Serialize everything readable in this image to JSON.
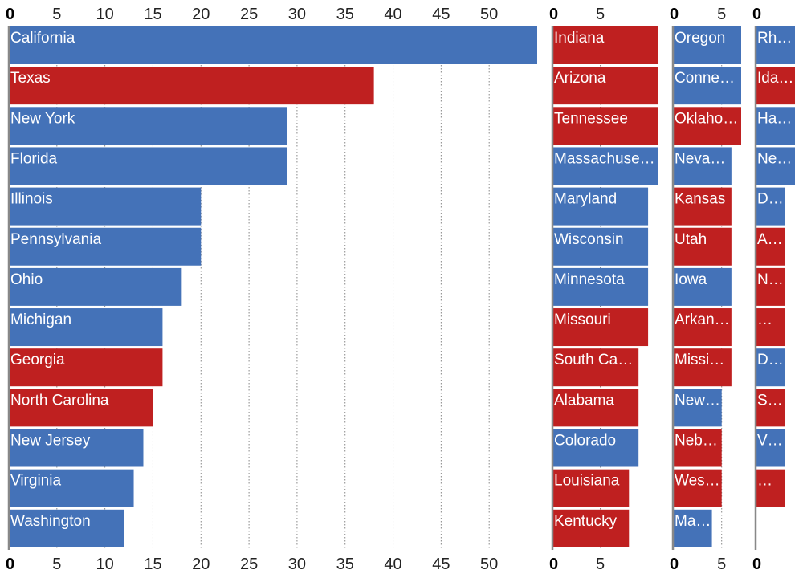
{
  "colors": {
    "democrat": "#4472b8",
    "republican": "#bf2020",
    "grid": "#888888",
    "axis": "#888888"
  },
  "chart_data": {
    "type": "bar",
    "orientation": "horizontal",
    "title": "",
    "xlabel": "",
    "ylabel": "",
    "grid": true,
    "ticks_top_and_bottom": true,
    "panels": [
      {
        "ticks": [
          0,
          5,
          10,
          15,
          20,
          25,
          30,
          35,
          40,
          45,
          50
        ],
        "xlim": [
          0,
          55
        ],
        "bars": [
          {
            "label": "California",
            "value": 55,
            "party": "democrat"
          },
          {
            "label": "Texas",
            "value": 38,
            "party": "republican"
          },
          {
            "label": "New York",
            "value": 29,
            "party": "democrat"
          },
          {
            "label": "Florida",
            "value": 29,
            "party": "democrat"
          },
          {
            "label": "Illinois",
            "value": 20,
            "party": "democrat"
          },
          {
            "label": "Pennsylvania",
            "value": 20,
            "party": "democrat"
          },
          {
            "label": "Ohio",
            "value": 18,
            "party": "democrat"
          },
          {
            "label": "Michigan",
            "value": 16,
            "party": "democrat"
          },
          {
            "label": "Georgia",
            "value": 16,
            "party": "republican"
          },
          {
            "label": "North Carolina",
            "value": 15,
            "party": "republican"
          },
          {
            "label": "New Jersey",
            "value": 14,
            "party": "democrat"
          },
          {
            "label": "Virginia",
            "value": 13,
            "party": "democrat"
          },
          {
            "label": "Washington",
            "value": 12,
            "party": "democrat"
          }
        ]
      },
      {
        "ticks": [
          0,
          5
        ],
        "xlim": [
          0,
          11
        ],
        "bars": [
          {
            "label": "Indiana",
            "value": 11,
            "party": "republican"
          },
          {
            "label": "Arizona",
            "value": 11,
            "party": "republican"
          },
          {
            "label": "Tennessee",
            "value": 11,
            "party": "republican"
          },
          {
            "label": "Massachuse…",
            "value": 11,
            "party": "democrat"
          },
          {
            "label": "Maryland",
            "value": 10,
            "party": "democrat"
          },
          {
            "label": "Wisconsin",
            "value": 10,
            "party": "democrat"
          },
          {
            "label": "Minnesota",
            "value": 10,
            "party": "democrat"
          },
          {
            "label": "Missouri",
            "value": 10,
            "party": "republican"
          },
          {
            "label": "South Car…",
            "value": 9,
            "party": "republican"
          },
          {
            "label": "Alabama",
            "value": 9,
            "party": "republican"
          },
          {
            "label": "Colorado",
            "value": 9,
            "party": "democrat"
          },
          {
            "label": "Louisiana",
            "value": 8,
            "party": "republican"
          },
          {
            "label": "Kentucky",
            "value": 8,
            "party": "republican"
          }
        ]
      },
      {
        "ticks": [
          0,
          5
        ],
        "xlim": [
          0,
          7
        ],
        "bars": [
          {
            "label": "Oregon",
            "value": 7,
            "party": "democrat"
          },
          {
            "label": "Connec…",
            "value": 7,
            "party": "democrat"
          },
          {
            "label": "Oklaho…",
            "value": 7,
            "party": "republican"
          },
          {
            "label": "Nevad…",
            "value": 6,
            "party": "democrat"
          },
          {
            "label": "Kansas",
            "value": 6,
            "party": "republican"
          },
          {
            "label": "Utah",
            "value": 6,
            "party": "republican"
          },
          {
            "label": "Iowa",
            "value": 6,
            "party": "democrat"
          },
          {
            "label": "Arkan…",
            "value": 6,
            "party": "republican"
          },
          {
            "label": "Missi…",
            "value": 6,
            "party": "republican"
          },
          {
            "label": "New…",
            "value": 5,
            "party": "democrat"
          },
          {
            "label": "Nebr…",
            "value": 5,
            "party": "republican"
          },
          {
            "label": "Wes…",
            "value": 5,
            "party": "republican"
          },
          {
            "label": "Ma…",
            "value": 4,
            "party": "democrat"
          }
        ]
      },
      {
        "ticks": [
          0
        ],
        "xlim": [
          0,
          4
        ],
        "bars": [
          {
            "label": "Rho…",
            "value": 4,
            "party": "democrat"
          },
          {
            "label": "Ida…",
            "value": 4,
            "party": "republican"
          },
          {
            "label": "Ha…",
            "value": 4,
            "party": "democrat"
          },
          {
            "label": "Ne…",
            "value": 4,
            "party": "democrat"
          },
          {
            "label": "D…",
            "value": 3,
            "party": "democrat"
          },
          {
            "label": "Al…",
            "value": 3,
            "party": "republican"
          },
          {
            "label": "N…",
            "value": 3,
            "party": "republican"
          },
          {
            "label": "M…",
            "value": 3,
            "party": "republican"
          },
          {
            "label": "Di…",
            "value": 3,
            "party": "democrat"
          },
          {
            "label": "S…",
            "value": 3,
            "party": "republican"
          },
          {
            "label": "V…",
            "value": 3,
            "party": "democrat"
          },
          {
            "label": "W…",
            "value": 3,
            "party": "republican"
          }
        ]
      }
    ]
  }
}
